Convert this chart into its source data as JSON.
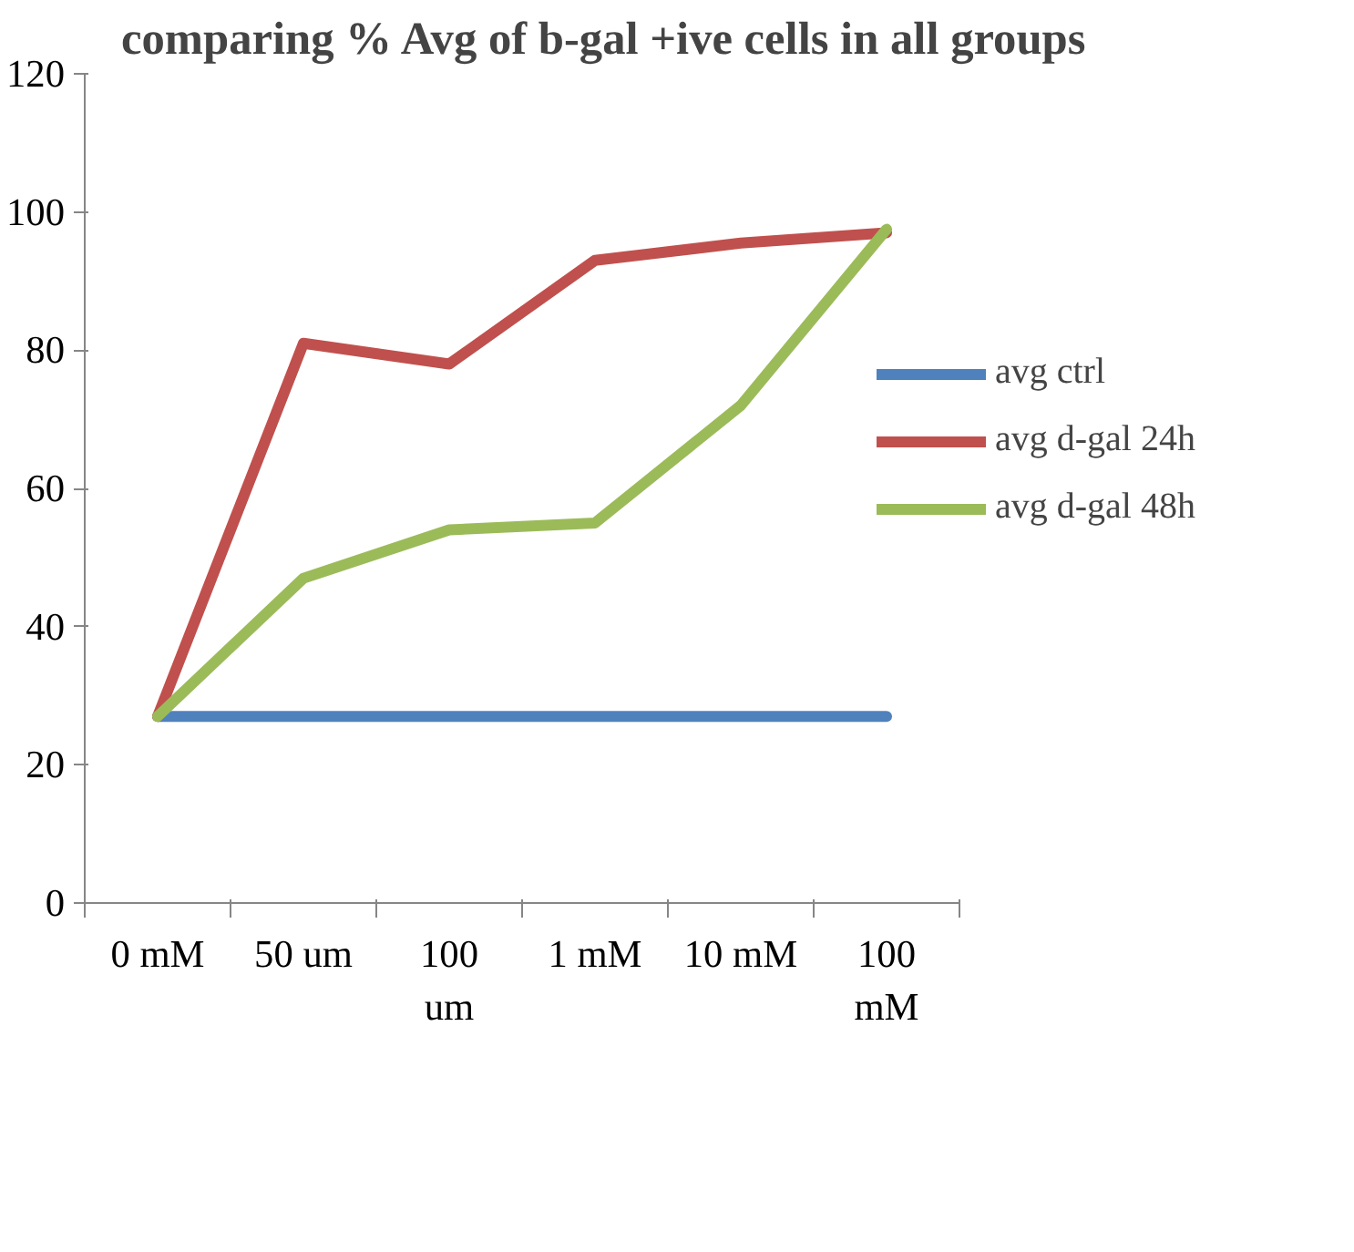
{
  "chart_data": {
    "type": "line",
    "title": "comparing % Avg of b-gal +ive cells in all groups",
    "categories": [
      "0 mM",
      "50 um",
      "100 um",
      "1 mM",
      "10 mM",
      "100 mM"
    ],
    "series": [
      {
        "name": "avg ctrl",
        "color": "#4f81bd",
        "values": [
          27,
          27,
          27,
          27,
          27,
          27
        ]
      },
      {
        "name": "avg d-gal 24h",
        "color": "#c0504d",
        "values": [
          27,
          81,
          78,
          93,
          95.5,
          97
        ]
      },
      {
        "name": "avg d-gal 48h",
        "color": "#9bbb59",
        "values": [
          27,
          47,
          54,
          55,
          72,
          97.5
        ]
      }
    ],
    "ylim": [
      0,
      120
    ],
    "yticks": [
      0,
      20,
      40,
      60,
      80,
      100,
      120
    ],
    "grid": false,
    "legend": "right",
    "marker": "none",
    "line_style": "solid"
  }
}
